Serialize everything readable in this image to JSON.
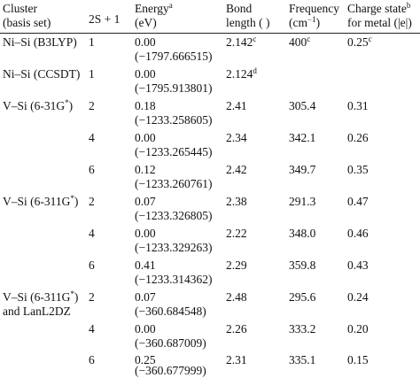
{
  "header": {
    "cluster_l1": "Cluster",
    "cluster_l2": "(basis set)",
    "spin": "2S + 1",
    "energy": "Energy",
    "energy_note": "a",
    "energy_unit": "(eV)",
    "bond_l1": "Bond",
    "bond_l2": "length (   )",
    "freq_l1": "Frequency",
    "freq_l2": "(cm",
    "freq_exp": "−1",
    "freq_close": ")",
    "charge_l1": "Charge state",
    "charge_note": "b",
    "charge_l2": "for metal (|e|)"
  },
  "rows": [
    {
      "cluster": "Ni–Si (B3LYP)",
      "spin": "1",
      "energy": "0.00",
      "total": "(−1797.666515)",
      "bond": "2.142",
      "bond_note": "c",
      "freq": "400",
      "freq_note": "c",
      "charge": "0.25",
      "charge_note": "c"
    },
    {
      "cluster": "Ni–Si (CCSDT)",
      "spin": "1",
      "energy": "0.00",
      "total": "(−1795.913801)",
      "bond": "2.124",
      "bond_note": "d",
      "freq": "",
      "freq_note": "",
      "charge": "",
      "charge_note": ""
    },
    {
      "cluster": "V–Si (6-31G*)",
      "spin": "2",
      "energy": "0.18",
      "total": "(−1233.258605)",
      "bond": "2.41",
      "bond_note": "",
      "freq": "305.4",
      "freq_note": "",
      "charge": "0.31",
      "charge_note": ""
    },
    {
      "cluster": "",
      "spin": "4",
      "energy": "0.00",
      "total": "(−1233.265445)",
      "bond": "2.34",
      "bond_note": "",
      "freq": "342.1",
      "freq_note": "",
      "charge": "0.26",
      "charge_note": ""
    },
    {
      "cluster": "",
      "spin": "6",
      "energy": "0.12",
      "total": "(−1233.260761)",
      "bond": "2.42",
      "bond_note": "",
      "freq": "349.7",
      "freq_note": "",
      "charge": "0.35",
      "charge_note": ""
    },
    {
      "cluster": "V–Si (6-311G*)",
      "spin": "2",
      "energy": "0.07",
      "total": "(−1233.326805)",
      "bond": "2.38",
      "bond_note": "",
      "freq": "291.3",
      "freq_note": "",
      "charge": "0.47",
      "charge_note": ""
    },
    {
      "cluster": "",
      "spin": "4",
      "energy": "0.00",
      "total": "(−1233.329263)",
      "bond": "2.22",
      "bond_note": "",
      "freq": "348.0",
      "freq_note": "",
      "charge": "0.46",
      "charge_note": ""
    },
    {
      "cluster": "",
      "spin": "6",
      "energy": "0.41",
      "total": "(−1233.314362)",
      "bond": "2.29",
      "bond_note": "",
      "freq": "359.8",
      "freq_note": "",
      "charge": "0.43",
      "charge_note": ""
    },
    {
      "cluster": "V–Si (6-311G*)",
      "cluster_l2": "and LanL2DZ",
      "spin": "2",
      "energy": "0.07",
      "total": "(−360.684548)",
      "bond": "2.48",
      "bond_note": "",
      "freq": "295.6",
      "freq_note": "",
      "charge": "0.24",
      "charge_note": ""
    },
    {
      "cluster": "",
      "spin": "4",
      "energy": "0.00",
      "total": "(−360.687009)",
      "bond": "2.26",
      "bond_note": "",
      "freq": "333.2",
      "freq_note": "",
      "charge": "0.20",
      "charge_note": ""
    },
    {
      "cluster": "",
      "spin": "6",
      "energy": "0.25",
      "total": "(−360.677999)",
      "bond": "2.31",
      "bond_note": "",
      "freq": "335.1",
      "freq_note": "",
      "charge": "0.15",
      "charge_note": ""
    }
  ]
}
